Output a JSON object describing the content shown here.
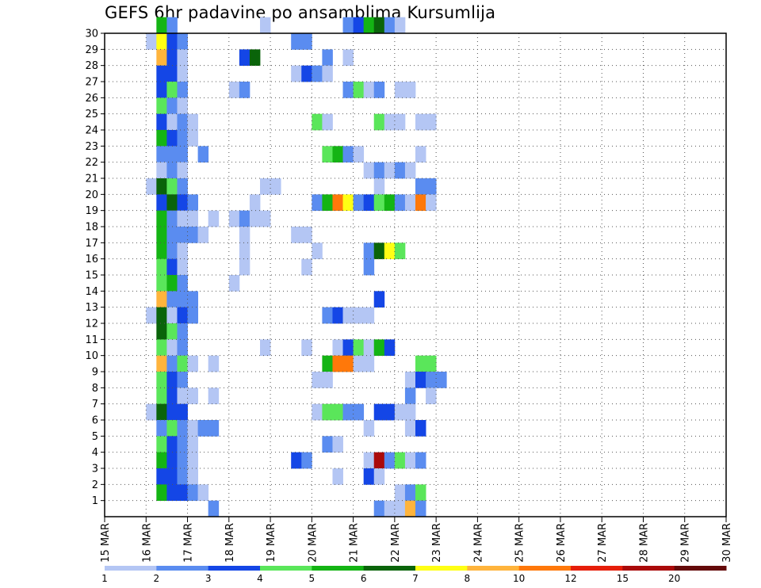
{
  "chart_data": {
    "type": "heatmap",
    "title": "GEFS 6hr padavine po ansamblima Kursumlija",
    "x_tick_labels": [
      "15 MAR",
      "16 MAR",
      "17 MAR",
      "18 MAR",
      "19 MAR",
      "20 MAR",
      "21 MAR",
      "22 MAR",
      "23 MAR",
      "24 MAR",
      "25 MAR",
      "26 MAR",
      "27 MAR",
      "28 MAR",
      "29 MAR",
      "30 MAR"
    ],
    "y_tick_labels": [
      "1",
      "2",
      "3",
      "4",
      "5",
      "6",
      "7",
      "8",
      "9",
      "10",
      "11",
      "12",
      "13",
      "14",
      "15",
      "16",
      "17",
      "18",
      "19",
      "20",
      "21",
      "22",
      "23",
      "24",
      "25",
      "26",
      "27",
      "28",
      "29",
      "30"
    ],
    "x_range_days": [
      0,
      15
    ],
    "y_range": [
      0,
      30
    ],
    "time_step_hours": 6,
    "grid": "dotted",
    "legend": {
      "position": "bottom",
      "labels": [
        "1",
        "2",
        "3",
        "4",
        "5",
        "6",
        "7",
        "8",
        "10",
        "12",
        "15",
        "20"
      ],
      "colors": [
        "#b4c6f4",
        "#5a8cf0",
        "#1446e6",
        "#5ae65a",
        "#14b414",
        "#0a640a",
        "#ffff14",
        "#ffb43c",
        "#ff780a",
        "#e61e0a",
        "#aa0a0a",
        "#640a0a"
      ]
    },
    "cells": [
      {
        "m": 30,
        "s": [
          [
            5,
            4
          ],
          [
            6,
            1
          ],
          [
            15,
            0
          ],
          [
            23,
            1
          ],
          [
            24,
            2
          ],
          [
            25,
            4
          ],
          [
            26,
            5
          ],
          [
            27,
            1
          ],
          [
            28,
            0
          ]
        ]
      },
      {
        "m": 29,
        "s": [
          [
            4,
            0
          ],
          [
            5,
            6
          ],
          [
            6,
            2
          ],
          [
            7,
            1
          ],
          [
            18,
            1
          ],
          [
            19,
            1
          ]
        ]
      },
      {
        "m": 28,
        "s": [
          [
            5,
            7
          ],
          [
            6,
            2
          ],
          [
            7,
            0
          ],
          [
            13,
            2
          ],
          [
            14,
            5
          ],
          [
            21,
            1
          ],
          [
            23,
            0
          ]
        ]
      },
      {
        "m": 27,
        "s": [
          [
            5,
            2
          ],
          [
            6,
            2
          ],
          [
            7,
            0
          ],
          [
            18,
            0
          ],
          [
            19,
            2
          ],
          [
            20,
            1
          ],
          [
            21,
            0
          ]
        ]
      },
      {
        "m": 26,
        "s": [
          [
            5,
            2
          ],
          [
            6,
            3
          ],
          [
            7,
            1
          ],
          [
            12,
            0
          ],
          [
            13,
            1
          ],
          [
            23,
            1
          ],
          [
            24,
            3
          ],
          [
            25,
            0
          ],
          [
            26,
            1
          ],
          [
            28,
            0
          ],
          [
            29,
            0
          ]
        ]
      },
      {
        "m": 25,
        "s": [
          [
            5,
            3
          ],
          [
            6,
            1
          ],
          [
            7,
            0
          ]
        ]
      },
      {
        "m": 24,
        "s": [
          [
            5,
            2
          ],
          [
            6,
            0
          ],
          [
            7,
            1
          ],
          [
            8,
            0
          ],
          [
            20,
            3
          ],
          [
            21,
            0
          ],
          [
            26,
            3
          ],
          [
            27,
            0
          ],
          [
            28,
            0
          ],
          [
            30,
            0
          ],
          [
            31,
            0
          ]
        ]
      },
      {
        "m": 23,
        "s": [
          [
            5,
            4
          ],
          [
            6,
            2
          ],
          [
            7,
            1
          ],
          [
            8,
            0
          ]
        ]
      },
      {
        "m": 22,
        "s": [
          [
            5,
            1
          ],
          [
            6,
            1
          ],
          [
            7,
            1
          ],
          [
            9,
            1
          ],
          [
            21,
            3
          ],
          [
            22,
            4
          ],
          [
            23,
            1
          ],
          [
            24,
            0
          ],
          [
            30,
            0
          ]
        ]
      },
      {
        "m": 21,
        "s": [
          [
            5,
            0
          ],
          [
            6,
            1
          ],
          [
            7,
            0
          ],
          [
            25,
            0
          ],
          [
            26,
            1
          ],
          [
            27,
            0
          ],
          [
            28,
            1
          ],
          [
            29,
            0
          ]
        ]
      },
      {
        "m": 20,
        "s": [
          [
            4,
            0
          ],
          [
            5,
            5
          ],
          [
            6,
            3
          ],
          [
            7,
            1
          ],
          [
            15,
            0
          ],
          [
            16,
            0
          ],
          [
            26,
            0
          ],
          [
            30,
            1
          ],
          [
            31,
            1
          ]
        ]
      },
      {
        "m": 19,
        "s": [
          [
            5,
            2
          ],
          [
            6,
            5
          ],
          [
            7,
            2
          ],
          [
            8,
            1
          ],
          [
            14,
            0
          ],
          [
            20,
            1
          ],
          [
            21,
            4
          ],
          [
            22,
            8
          ],
          [
            23,
            6
          ],
          [
            24,
            1
          ],
          [
            25,
            2
          ],
          [
            26,
            3
          ],
          [
            27,
            4
          ],
          [
            28,
            1
          ],
          [
            29,
            0
          ],
          [
            30,
            8
          ],
          [
            31,
            0
          ]
        ]
      },
      {
        "m": 18,
        "s": [
          [
            5,
            4
          ],
          [
            6,
            1
          ],
          [
            7,
            0
          ],
          [
            8,
            0
          ],
          [
            10,
            0
          ],
          [
            12,
            0
          ],
          [
            13,
            1
          ],
          [
            14,
            0
          ],
          [
            15,
            0
          ]
        ]
      },
      {
        "m": 17,
        "s": [
          [
            5,
            4
          ],
          [
            6,
            1
          ],
          [
            7,
            1
          ],
          [
            8,
            1
          ],
          [
            9,
            0
          ],
          [
            13,
            0
          ],
          [
            18,
            0
          ],
          [
            19,
            0
          ]
        ]
      },
      {
        "m": 16,
        "s": [
          [
            5,
            4
          ],
          [
            6,
            1
          ],
          [
            7,
            0
          ],
          [
            13,
            0
          ],
          [
            20,
            0
          ],
          [
            25,
            1
          ],
          [
            26,
            5
          ],
          [
            27,
            6
          ],
          [
            28,
            3
          ]
        ]
      },
      {
        "m": 15,
        "s": [
          [
            5,
            3
          ],
          [
            6,
            2
          ],
          [
            7,
            0
          ],
          [
            13,
            0
          ],
          [
            19,
            0
          ],
          [
            25,
            1
          ]
        ]
      },
      {
        "m": 14,
        "s": [
          [
            5,
            3
          ],
          [
            6,
            4
          ],
          [
            7,
            1
          ],
          [
            12,
            0
          ]
        ]
      },
      {
        "m": 13,
        "s": [
          [
            5,
            7
          ],
          [
            6,
            1
          ],
          [
            7,
            1
          ],
          [
            8,
            1
          ],
          [
            26,
            2
          ]
        ]
      },
      {
        "m": 12,
        "s": [
          [
            4,
            0
          ],
          [
            5,
            5
          ],
          [
            6,
            0
          ],
          [
            7,
            2
          ],
          [
            8,
            1
          ],
          [
            21,
            1
          ],
          [
            22,
            2
          ],
          [
            23,
            0
          ],
          [
            24,
            0
          ],
          [
            25,
            0
          ]
        ]
      },
      {
        "m": 11,
        "s": [
          [
            5,
            5
          ],
          [
            6,
            3
          ],
          [
            7,
            1
          ]
        ]
      },
      {
        "m": 10,
        "s": [
          [
            5,
            3
          ],
          [
            6,
            0
          ],
          [
            7,
            1
          ],
          [
            15,
            0
          ],
          [
            19,
            0
          ],
          [
            22,
            0
          ],
          [
            23,
            2
          ],
          [
            24,
            3
          ],
          [
            25,
            0
          ],
          [
            26,
            4
          ],
          [
            27,
            2
          ]
        ]
      },
      {
        "m": 9,
        "s": [
          [
            5,
            7
          ],
          [
            6,
            1
          ],
          [
            7,
            3
          ],
          [
            8,
            0
          ],
          [
            10,
            0
          ],
          [
            21,
            4
          ],
          [
            22,
            8
          ],
          [
            23,
            8
          ],
          [
            24,
            0
          ],
          [
            25,
            0
          ],
          [
            30,
            3
          ],
          [
            31,
            3
          ]
        ]
      },
      {
        "m": 8,
        "s": [
          [
            5,
            3
          ],
          [
            6,
            2
          ],
          [
            7,
            1
          ],
          [
            20,
            0
          ],
          [
            21,
            0
          ],
          [
            29,
            0
          ],
          [
            30,
            2
          ],
          [
            31,
            1
          ],
          [
            32,
            1
          ]
        ]
      },
      {
        "m": 7,
        "s": [
          [
            5,
            3
          ],
          [
            6,
            2
          ],
          [
            7,
            0
          ],
          [
            8,
            0
          ],
          [
            10,
            0
          ],
          [
            29,
            1
          ],
          [
            31,
            0
          ]
        ]
      },
      {
        "m": 6,
        "s": [
          [
            4,
            0
          ],
          [
            5,
            5
          ],
          [
            6,
            2
          ],
          [
            7,
            2
          ],
          [
            20,
            0
          ],
          [
            21,
            3
          ],
          [
            22,
            3
          ],
          [
            23,
            1
          ],
          [
            24,
            1
          ],
          [
            26,
            2
          ],
          [
            27,
            2
          ],
          [
            28,
            0
          ],
          [
            29,
            0
          ]
        ]
      },
      {
        "m": 5,
        "s": [
          [
            5,
            1
          ],
          [
            6,
            3
          ],
          [
            7,
            1
          ],
          [
            8,
            0
          ],
          [
            9,
            1
          ],
          [
            10,
            1
          ],
          [
            25,
            0
          ],
          [
            29,
            0
          ],
          [
            30,
            2
          ]
        ]
      },
      {
        "m": 4,
        "s": [
          [
            5,
            3
          ],
          [
            6,
            2
          ],
          [
            7,
            1
          ],
          [
            8,
            0
          ],
          [
            21,
            1
          ],
          [
            22,
            0
          ]
        ]
      },
      {
        "m": 3,
        "s": [
          [
            5,
            4
          ],
          [
            6,
            2
          ],
          [
            7,
            1
          ],
          [
            8,
            0
          ],
          [
            18,
            2
          ],
          [
            19,
            1
          ],
          [
            25,
            0
          ],
          [
            26,
            10
          ],
          [
            27,
            1
          ],
          [
            28,
            3
          ],
          [
            29,
            0
          ],
          [
            30,
            1
          ]
        ]
      },
      {
        "m": 2,
        "s": [
          [
            5,
            2
          ],
          [
            6,
            2
          ],
          [
            7,
            1
          ],
          [
            8,
            0
          ],
          [
            22,
            0
          ],
          [
            25,
            2
          ],
          [
            26,
            0
          ]
        ]
      },
      {
        "m": 1,
        "s": [
          [
            5,
            4
          ],
          [
            6,
            2
          ],
          [
            7,
            2
          ],
          [
            8,
            1
          ],
          [
            9,
            0
          ],
          [
            28,
            0
          ],
          [
            29,
            1
          ],
          [
            30,
            3
          ]
        ]
      },
      {
        "m": 0,
        "s": [
          [
            10,
            1
          ],
          [
            26,
            1
          ],
          [
            27,
            0
          ],
          [
            28,
            0
          ],
          [
            29,
            7
          ],
          [
            30,
            1
          ]
        ]
      }
    ]
  }
}
